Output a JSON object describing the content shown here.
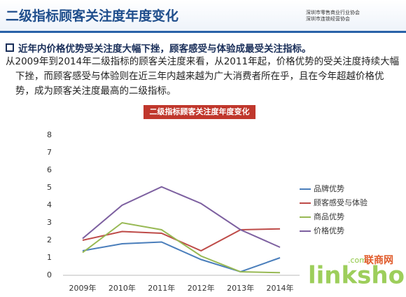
{
  "header": {
    "title": "二级指标顾客关注度年度变化",
    "logo_lines": [
      "深圳市零售商业行业协会",
      "深圳市连锁经营协会"
    ]
  },
  "bullet": "近年内价格优势受关注度大幅下挫，顾客感受与体验成最受关注指标。",
  "paragraph": "从2009年到2014年二级指标的顾客关注度来看，从2011年起，价格优势的受关注度持续大幅下挫，而顾客感受与体验则在近三年内越来越为广大消费者所在乎，且在今年超越价格优势，成为顾客关注度最高的二级指标。",
  "watermark": {
    "brand": "linkshop",
    "domain": ".com",
    "cn": "联商网"
  },
  "chart_data": {
    "type": "line",
    "title": "二级指标顾客关注度年度变化",
    "categories": [
      "2009年",
      "2010年",
      "2011年",
      "2012年",
      "2013年",
      "2014年"
    ],
    "series": [
      {
        "name": "品牌优势",
        "color": "#4a7ebb",
        "values": [
          1.4,
          1.8,
          1.9,
          0.9,
          0.2,
          1.0
        ]
      },
      {
        "name": "顾客感受与体验",
        "color": "#be4b48",
        "values": [
          2.0,
          2.5,
          2.4,
          1.4,
          2.6,
          2.65
        ]
      },
      {
        "name": "商品优势",
        "color": "#98b954",
        "values": [
          1.3,
          3.0,
          2.6,
          1.1,
          0.2,
          0.15
        ]
      },
      {
        "name": "价格优势",
        "color": "#7d60a0",
        "values": [
          2.1,
          4.0,
          5.05,
          4.1,
          2.6,
          1.6
        ]
      }
    ],
    "ylim": [
      0,
      8
    ],
    "yticks": [
      0,
      1,
      2,
      3,
      4,
      5,
      6,
      7,
      8
    ]
  }
}
